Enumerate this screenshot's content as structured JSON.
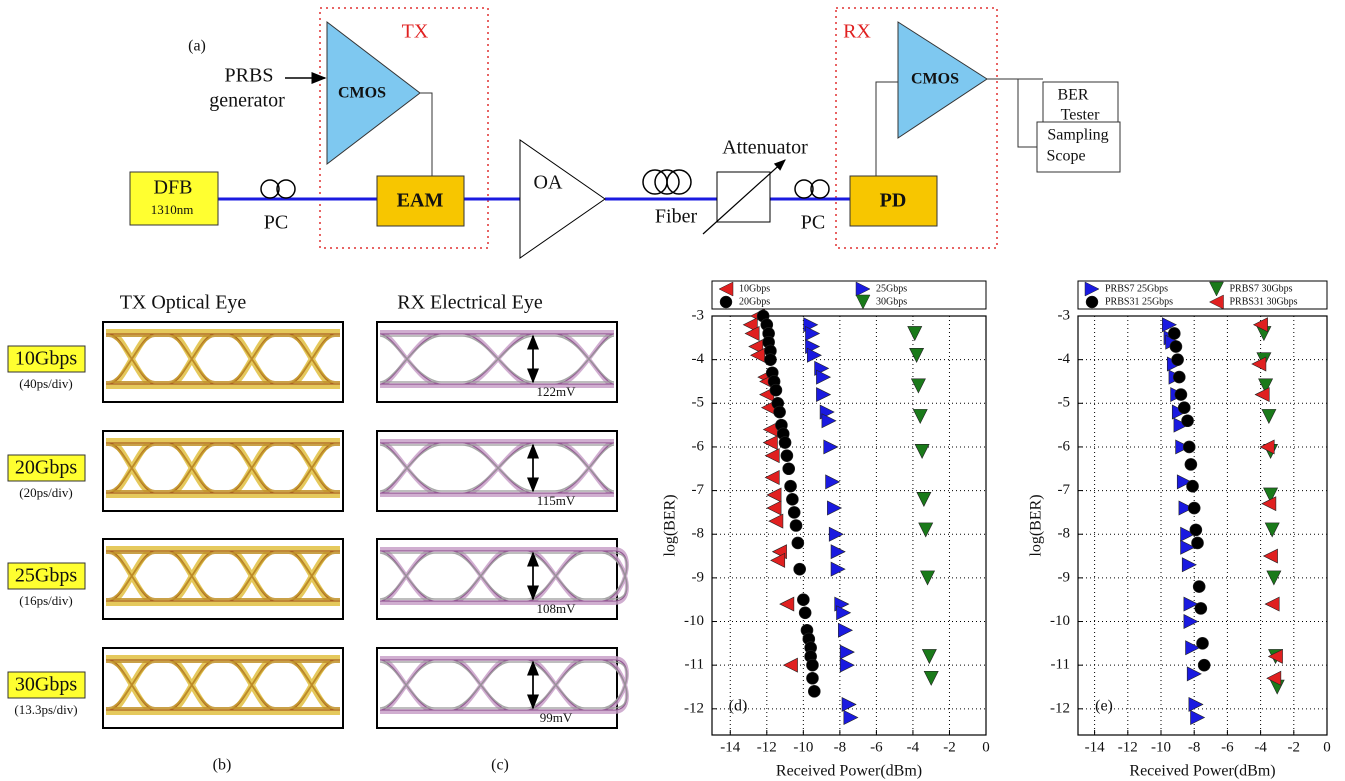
{
  "diagram": {
    "label": "(a)",
    "tx": "TX",
    "rx": "RX",
    "prbs": [
      "PRBS",
      "generator"
    ],
    "tx_amp": "CMOS",
    "rx_amp": "CMOS",
    "laser": [
      "DFB",
      "1310nm"
    ],
    "pc1": "PC",
    "modulator": "EAM",
    "amplifier": "OA",
    "fiber": "Fiber",
    "attenuator": "Attenuator",
    "pc2": "PC",
    "detector": "PD",
    "ber_tester": [
      "BER",
      "Tester"
    ],
    "scope": [
      "Sampling",
      "Scope"
    ]
  },
  "eyes": {
    "tx_label": "(b)",
    "rx_label": "(c)",
    "tx_header": "TX Optical Eye",
    "rx_header": "RX Electrical Eye",
    "rows": [
      {
        "rate": "10Gbps",
        "timebase": "(40ps/div)",
        "amplitude": "122mV"
      },
      {
        "rate": "20Gbps",
        "timebase": "(20ps/div)",
        "amplitude": "115mV"
      },
      {
        "rate": "25Gbps",
        "timebase": "(16ps/div)",
        "amplitude": "108mV"
      },
      {
        "rate": "30Gbps",
        "timebase": "(13.3ps/div)",
        "amplitude": "99mV"
      }
    ]
  },
  "chart_data": [
    {
      "type": "scatter",
      "label": "(d)",
      "xlabel": "Received Power(dBm)",
      "ylabel": "log(BER)",
      "xlim": [
        -15,
        0
      ],
      "ylim": [
        -12.6,
        -3
      ],
      "xticks": [
        -14,
        -12,
        -10,
        -8,
        -6,
        -4,
        -2,
        0
      ],
      "yticks": [
        -3,
        -4,
        -5,
        -6,
        -7,
        -8,
        -9,
        -10,
        -11,
        -12
      ],
      "grid": true,
      "legend": "top",
      "series": [
        {
          "name": "10Gbps",
          "color": "#e02020",
          "marker": "triangle-left",
          "x": [
            -12.5,
            -12.9,
            -12.8,
            -12.6,
            -12.5,
            -12.1,
            -12.0,
            -12.0,
            -11.9,
            -11.8,
            -11.8,
            -11.7,
            -11.7,
            -11.6,
            -11.6,
            -11.5,
            -11.3,
            -11.4,
            -10.9,
            -10.7
          ],
          "y": [
            -3.0,
            -3.2,
            -3.4,
            -3.7,
            -3.9,
            -4.4,
            -4.5,
            -4.8,
            -5.1,
            -5.6,
            -5.9,
            -6.2,
            -6.7,
            -7.1,
            -7.4,
            -7.7,
            -8.4,
            -8.6,
            -9.6,
            -11.0
          ]
        },
        {
          "name": "20Gbps",
          "color": "#000000",
          "marker": "circle",
          "x": [
            -12.2,
            -12.0,
            -11.9,
            -11.9,
            -11.8,
            -11.8,
            -11.7,
            -11.6,
            -11.5,
            -11.4,
            -11.3,
            -11.2,
            -11.1,
            -11.0,
            -10.9,
            -10.8,
            -10.7,
            -10.6,
            -10.5,
            -10.4,
            -10.3,
            -10.2,
            -10.0,
            -9.9,
            -9.8,
            -9.7,
            -9.6,
            -9.6,
            -9.5,
            -9.5,
            -9.4
          ],
          "y": [
            -3.0,
            -3.2,
            -3.4,
            -3.6,
            -3.8,
            -4.0,
            -4.3,
            -4.5,
            -4.7,
            -5.0,
            -5.2,
            -5.5,
            -5.7,
            -5.9,
            -6.2,
            -6.5,
            -6.9,
            -7.2,
            -7.5,
            -7.8,
            -8.2,
            -8.8,
            -9.5,
            -9.8,
            -10.2,
            -10.4,
            -10.6,
            -10.8,
            -11.0,
            -11.3,
            -11.6
          ]
        },
        {
          "name": "25Gbps",
          "color": "#1a1ae0",
          "marker": "triangle-right",
          "x": [
            -9.6,
            -9.5,
            -9.5,
            -9.4,
            -9.0,
            -8.9,
            -8.9,
            -8.7,
            -8.6,
            -8.5,
            -8.4,
            -8.3,
            -8.2,
            -8.1,
            -8.1,
            -7.9,
            -7.8,
            -7.7,
            -7.6,
            -7.6,
            -7.5,
            -7.4
          ],
          "y": [
            -3.2,
            -3.4,
            -3.7,
            -3.9,
            -4.2,
            -4.4,
            -4.8,
            -5.2,
            -5.4,
            -6.0,
            -6.8,
            -7.4,
            -8.0,
            -8.4,
            -8.8,
            -9.6,
            -9.8,
            -10.2,
            -10.7,
            -11.0,
            -11.9,
            -12.2
          ]
        },
        {
          "name": "30Gbps",
          "color": "#1a7a1a",
          "marker": "triangle-down",
          "x": [
            -3.9,
            -3.8,
            -3.7,
            -3.6,
            -3.5,
            -3.4,
            -3.3,
            -3.2,
            -3.1,
            -3.0
          ],
          "y": [
            -3.4,
            -3.9,
            -4.6,
            -5.3,
            -6.1,
            -7.2,
            -7.9,
            -9.0,
            -10.8,
            -11.3
          ]
        }
      ]
    },
    {
      "type": "scatter",
      "label": "(e)",
      "xlabel": "Received Power(dBm)",
      "ylabel": "log(BER)",
      "xlim": [
        -15,
        0
      ],
      "ylim": [
        -12.6,
        -3
      ],
      "xticks": [
        -14,
        -12,
        -10,
        -8,
        -6,
        -4,
        -2,
        0
      ],
      "yticks": [
        -3,
        -4,
        -5,
        -6,
        -7,
        -8,
        -9,
        -10,
        -11,
        -12
      ],
      "grid": true,
      "legend": "top",
      "series": [
        {
          "name": "PRBS7 25Gbps",
          "color": "#1a1ae0",
          "marker": "triangle-right",
          "x": [
            -9.5,
            -9.4,
            -9.3,
            -9.2,
            -9.1,
            -9.0,
            -8.9,
            -8.8,
            -8.7,
            -8.6,
            -8.5,
            -8.4,
            -8.4,
            -8.3,
            -8.2,
            -8.2,
            -8.1,
            -8.0,
            -7.9,
            -7.8
          ],
          "y": [
            -3.2,
            -3.5,
            -3.6,
            -4.1,
            -4.4,
            -4.8,
            -5.2,
            -5.5,
            -6.0,
            -6.8,
            -7.4,
            -8.0,
            -8.3,
            -8.7,
            -9.6,
            -10.0,
            -10.6,
            -11.2,
            -11.9,
            -12.2
          ]
        },
        {
          "name": "PRBS31 25Gbps",
          "color": "#000000",
          "marker": "circle",
          "x": [
            -9.2,
            -9.1,
            -9.0,
            -8.9,
            -8.8,
            -8.6,
            -8.4,
            -8.3,
            -8.2,
            -8.1,
            -8.0,
            -7.9,
            -7.8,
            -7.7,
            -7.6,
            -7.5,
            -7.4
          ],
          "y": [
            -3.4,
            -3.7,
            -4.0,
            -4.4,
            -4.8,
            -5.1,
            -5.4,
            -6.0,
            -6.4,
            -6.9,
            -7.4,
            -7.9,
            -8.2,
            -9.2,
            -9.7,
            -10.5,
            -11.0
          ]
        },
        {
          "name": "PRBS7 30Gbps",
          "color": "#1a7a1a",
          "marker": "triangle-down",
          "x": [
            -3.8,
            -3.8,
            -3.7,
            -3.5,
            -3.4,
            -3.4,
            -3.3,
            -3.2,
            -3.1,
            -3.0
          ],
          "y": [
            -3.4,
            -4.0,
            -4.6,
            -5.3,
            -6.1,
            -7.1,
            -7.9,
            -9.0,
            -10.8,
            -11.5
          ]
        },
        {
          "name": "PRBS31 30Gbps",
          "color": "#e02020",
          "marker": "triangle-left",
          "x": [
            -4.0,
            -4.1,
            -3.9,
            -3.6,
            -3.5,
            -3.4,
            -3.3,
            -3.1,
            -3.2
          ],
          "y": [
            -3.2,
            -4.1,
            -4.8,
            -6.0,
            -7.3,
            -8.5,
            -9.6,
            -10.8,
            -11.3
          ]
        }
      ]
    }
  ]
}
